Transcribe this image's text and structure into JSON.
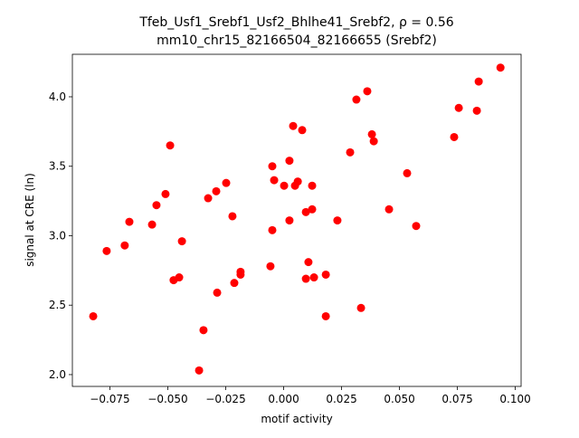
{
  "chart_data": {
    "type": "scatter",
    "title": "Tfeb_Usf1_Srebf1_Usf2_Bhlhe41_Srebf2, ρ = 0.56",
    "subtitle": "mm10_chr15_82166504_82166655 (Srebf2)",
    "x_label": "motif activity",
    "y_label": "signal at CRE (ln)",
    "color": "#ff0000",
    "x": [
      -0.0822,
      -0.0764,
      -0.0686,
      -0.0666,
      -0.0568,
      -0.0549,
      -0.051,
      -0.049,
      -0.0475,
      -0.0451,
      -0.0439,
      -0.0365,
      -0.0346,
      -0.0326,
      -0.0291,
      -0.0287,
      -0.0248,
      -0.0221,
      -0.0213,
      -0.0186,
      -0.0186,
      -0.0057,
      -0.0049,
      -0.0049,
      -0.0041,
      0.0002,
      0.0025,
      0.0025,
      0.0041,
      0.0049,
      0.0061,
      0.008,
      0.0096,
      0.0096,
      0.0107,
      0.0123,
      0.0123,
      0.0131,
      0.0182,
      0.0182,
      0.0232,
      0.0287,
      0.0314,
      0.0334,
      0.0361,
      0.0381,
      0.0389,
      0.0455,
      0.0533,
      0.0572,
      0.0736,
      0.0756,
      0.0834,
      0.0842,
      0.0936
    ],
    "values": [
      2.42,
      2.89,
      2.93,
      3.1,
      3.08,
      3.22,
      3.3,
      3.65,
      2.68,
      2.7,
      2.96,
      2.03,
      2.32,
      3.27,
      3.32,
      2.59,
      3.38,
      3.14,
      2.66,
      2.72,
      2.74,
      2.78,
      3.5,
      3.04,
      3.4,
      3.36,
      3.54,
      3.11,
      3.79,
      3.36,
      3.39,
      3.76,
      2.69,
      3.17,
      2.81,
      3.36,
      3.19,
      2.7,
      2.72,
      2.42,
      3.11,
      3.6,
      3.98,
      2.48,
      4.04,
      3.73,
      3.68,
      3.19,
      3.45,
      3.07,
      3.71,
      3.92,
      3.9,
      4.11,
      4.21
    ],
    "xlim": [
      -0.0912,
      0.1025
    ],
    "ylim": [
      1.915,
      4.306
    ],
    "xticks": [
      {
        "value": -0.075,
        "label": "−0.075"
      },
      {
        "value": -0.05,
        "label": "−0.050"
      },
      {
        "value": -0.025,
        "label": "−0.025"
      },
      {
        "value": 0,
        "label": "0.000"
      },
      {
        "value": 0.025,
        "label": "0.025"
      },
      {
        "value": 0.05,
        "label": "0.050"
      },
      {
        "value": 0.075,
        "label": "0.075"
      },
      {
        "value": 0.1,
        "label": "0.100"
      }
    ],
    "yticks": [
      {
        "value": 2,
        "label": "2.0"
      },
      2.5,
      {
        "value": 3,
        "label": "3.0"
      },
      3.5,
      {
        "value": 4,
        "label": "4.0"
      }
    ]
  }
}
